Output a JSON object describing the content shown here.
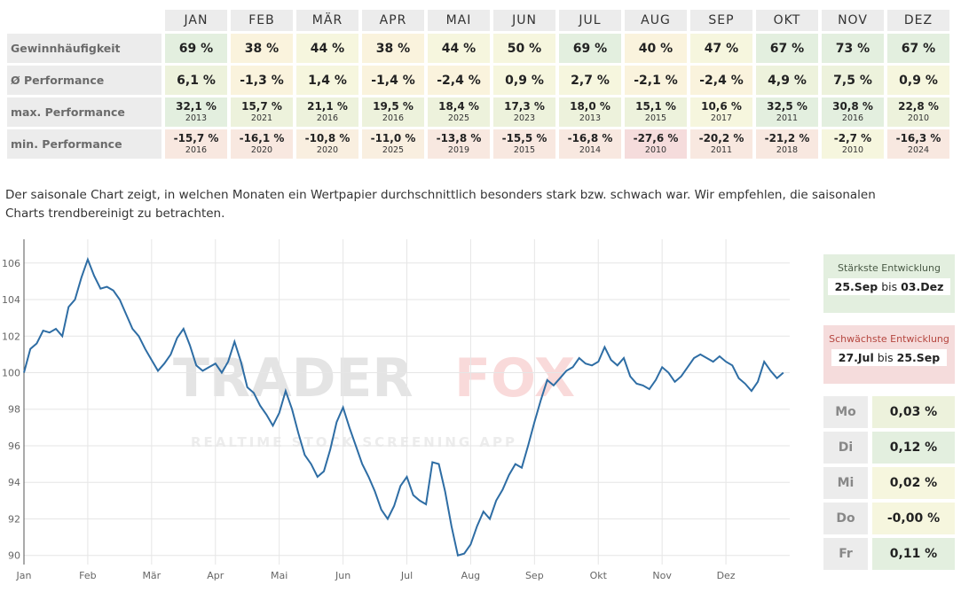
{
  "table": {
    "months": [
      "JAN",
      "FEB",
      "MÄR",
      "APR",
      "MAI",
      "JUN",
      "JUL",
      "AUG",
      "SEP",
      "OKT",
      "NOV",
      "DEZ"
    ],
    "rows": {
      "win": {
        "label": "Gewinnhäufigkeit",
        "values": [
          "69 %",
          "38 %",
          "44 %",
          "38 %",
          "44 %",
          "50 %",
          "69 %",
          "40 %",
          "47 %",
          "67 %",
          "73 %",
          "67 %"
        ]
      },
      "avg": {
        "label": "Ø Performance",
        "values": [
          "6,1 %",
          "-1,3 %",
          "1,4 %",
          "-1,4 %",
          "-2,4 %",
          "0,9 %",
          "2,7 %",
          "-2,1 %",
          "-2,4 %",
          "4,9 %",
          "7,5 %",
          "0,9 %"
        ]
      },
      "max": {
        "label": "max. Performance",
        "values": [
          "32,1 %",
          "15,7 %",
          "21,1 %",
          "19,5 %",
          "18,4 %",
          "17,3 %",
          "18,0 %",
          "15,1 %",
          "10,6 %",
          "32,5 %",
          "30,8 %",
          "22,8 %"
        ],
        "years": [
          "2013",
          "2021",
          "2016",
          "2016",
          "2025",
          "2023",
          "2013",
          "2015",
          "2017",
          "2011",
          "2016",
          "2010"
        ]
      },
      "min": {
        "label": "min. Performance",
        "values": [
          "-15,7 %",
          "-16,1 %",
          "-10,8 %",
          "-11,0 %",
          "-13,8 %",
          "-15,5 %",
          "-16,8 %",
          "-27,6 %",
          "-20,2 %",
          "-21,2 %",
          "-2,7 %",
          "-16,3 %"
        ],
        "years": [
          "2016",
          "2020",
          "2020",
          "2025",
          "2019",
          "2015",
          "2014",
          "2010",
          "2011",
          "2018",
          "2010",
          "2024"
        ]
      }
    }
  },
  "description": "Der saisonale Chart zeigt, in welchen Monaten ein Wertpapier durchschnittlich besonders stark bzw. schwach war. Wir empfehlen, die saisonalen Charts trendbereinigt zu betrachten.",
  "watermark": {
    "brand_a": "TRADER",
    "brand_b": "FOX",
    "tagline": "REALTIME STOCK SCREENING APP"
  },
  "strongest": {
    "title": "Stärkste Entwicklung",
    "from": "25.Sep",
    "sep": "bis",
    "to": "03.Dez"
  },
  "weakest": {
    "title": "Schwächste Entwicklung",
    "from": "27.Jul",
    "sep": "bis",
    "to": "25.Sep"
  },
  "weekdays": [
    {
      "label": "Mo",
      "value": "0,03 %"
    },
    {
      "label": "Di",
      "value": "0,12 %"
    },
    {
      "label": "Mi",
      "value": "0,02 %"
    },
    {
      "label": "Do",
      "value": "-0,00 %"
    },
    {
      "label": "Fr",
      "value": "0,11 %"
    }
  ],
  "colors": {
    "line": "#2e6da4",
    "grid": "#e6e6e6",
    "axis_text": "#666666"
  },
  "chart_data": {
    "type": "line",
    "title": "",
    "xlabel": "",
    "ylabel": "",
    "x_ticks": [
      "Jan",
      "Feb",
      "Mär",
      "Apr",
      "Mai",
      "Jun",
      "Jul",
      "Aug",
      "Sep",
      "Okt",
      "Nov",
      "Dez"
    ],
    "y_ticks": [
      90,
      92,
      94,
      96,
      98,
      100,
      102,
      104,
      106
    ],
    "ylim": [
      89.5,
      107.3
    ],
    "xlim": [
      0,
      12
    ],
    "grid": true,
    "series": [
      {
        "x": [
          0,
          0.1,
          0.2,
          0.3,
          0.4,
          0.5,
          0.6,
          0.7,
          0.8,
          0.9,
          1.0,
          1.1,
          1.2,
          1.3,
          1.4,
          1.5,
          1.6,
          1.7,
          1.8,
          1.9,
          2.0,
          2.1,
          2.2,
          2.3,
          2.4,
          2.5,
          2.6,
          2.7,
          2.8,
          2.9,
          3.0,
          3.1,
          3.2,
          3.3,
          3.4,
          3.5,
          3.6,
          3.7,
          3.8,
          3.9,
          4.0,
          4.1,
          4.2,
          4.3,
          4.4,
          4.5,
          4.6,
          4.7,
          4.8,
          4.9,
          5.0,
          5.1,
          5.2,
          5.3,
          5.4,
          5.5,
          5.6,
          5.7,
          5.8,
          5.9,
          6.0,
          6.1,
          6.2,
          6.3,
          6.4,
          6.5,
          6.6,
          6.7,
          6.8,
          6.9,
          7.0,
          7.1,
          7.2,
          7.3,
          7.4,
          7.5,
          7.6,
          7.7,
          7.8,
          7.9,
          8.0,
          8.1,
          8.2,
          8.3,
          8.4,
          8.5,
          8.6,
          8.7,
          8.8,
          8.9,
          9.0,
          9.1,
          9.2,
          9.3,
          9.4,
          9.5,
          9.6,
          9.7,
          9.8,
          9.9,
          10.0,
          10.1,
          10.2,
          10.3,
          10.4,
          10.5,
          10.6,
          10.7,
          10.8,
          10.9,
          11.0,
          11.1,
          11.2,
          11.3,
          11.4,
          11.5,
          11.6,
          11.7,
          11.8,
          11.9
        ],
        "y": [
          100.0,
          101.3,
          101.6,
          102.3,
          102.2,
          102.4,
          102.0,
          103.6,
          104.0,
          105.2,
          106.2,
          105.3,
          104.6,
          104.7,
          104.5,
          104.0,
          103.2,
          102.4,
          102.0,
          101.3,
          100.7,
          100.1,
          100.5,
          101.0,
          101.9,
          102.4,
          101.5,
          100.4,
          100.1,
          100.3,
          100.5,
          100.0,
          100.6,
          101.7,
          100.6,
          99.2,
          98.9,
          98.2,
          97.7,
          97.1,
          97.8,
          99.0,
          98.0,
          96.7,
          95.5,
          95.0,
          94.3,
          94.6,
          95.8,
          97.3,
          98.1,
          97.0,
          96.0,
          95.0,
          94.3,
          93.5,
          92.5,
          92.0,
          92.7,
          93.8,
          94.3,
          93.3,
          93.0,
          92.8,
          95.1,
          95.0,
          93.5,
          91.6,
          90.0,
          90.1,
          90.6,
          91.6,
          92.4,
          92.0,
          93.0,
          93.6,
          94.4,
          95.0,
          94.8,
          96.0,
          97.3,
          98.5,
          99.6,
          99.3,
          99.7,
          100.1,
          100.3,
          100.8,
          100.5,
          100.4,
          100.6,
          101.4,
          100.7,
          100.4,
          100.8,
          99.8,
          99.4,
          99.3,
          99.1,
          99.6,
          100.3,
          100.0,
          99.5,
          99.8,
          100.3,
          100.8,
          101.0,
          100.8,
          100.6,
          100.9,
          100.6,
          100.4,
          99.7,
          99.4,
          99.0,
          99.5,
          100.6,
          100.1,
          99.7,
          100.0
        ]
      }
    ]
  }
}
